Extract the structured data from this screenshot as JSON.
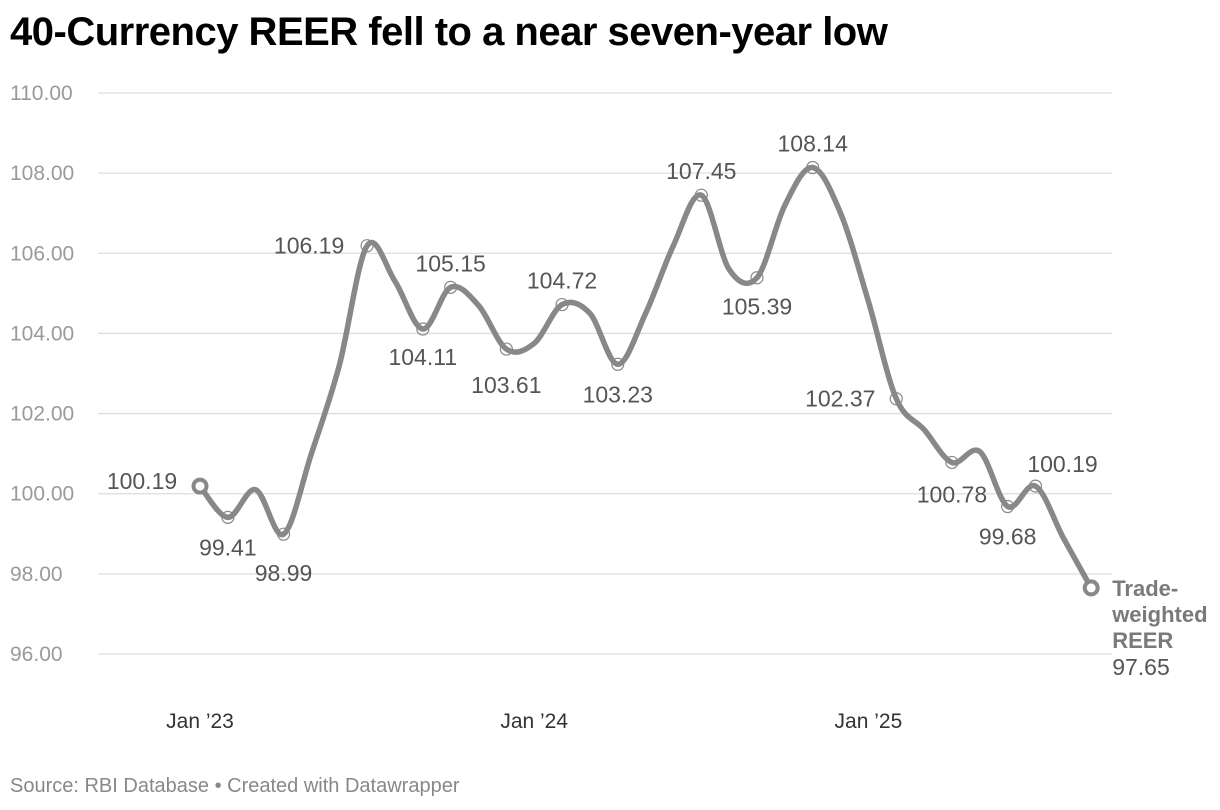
{
  "title": "40-Currency REER fell to a near seven-year low",
  "footer": {
    "source": "Source: RBI Database",
    "separator": "•",
    "credit": "Created with Datawrapper"
  },
  "colors": {
    "line": "#888888",
    "grid": "#dddddd",
    "label": "#555555",
    "axis_text": "#9a9a9a"
  },
  "chart_data": {
    "type": "line",
    "title": "40-Currency REER fell to a near seven-year low",
    "xlabel": "",
    "ylabel": "",
    "ylim": [
      96,
      110
    ],
    "y_ticks": [
      "96.00",
      "98.00",
      "100.00",
      "102.00",
      "104.00",
      "106.00",
      "108.00",
      "110.00"
    ],
    "x_ticks": [
      {
        "label": "Jan ’23",
        "month_index": 0
      },
      {
        "label": "Jan ’24",
        "month_index": 12
      },
      {
        "label": "Jan ’25",
        "month_index": 24
      }
    ],
    "series": [
      {
        "name": "Trade-weighted REER",
        "points": [
          {
            "month_index": 0,
            "value": 100.19,
            "label": "100.19"
          },
          {
            "month_index": 1,
            "value": 99.41,
            "label": "99.41"
          },
          {
            "month_index": 2,
            "value": 100.1
          },
          {
            "month_index": 3,
            "value": 98.99,
            "label": "98.99"
          },
          {
            "month_index": 4,
            "value": 101.0
          },
          {
            "month_index": 5,
            "value": 103.2
          },
          {
            "month_index": 6,
            "value": 106.19,
            "label": "106.19"
          },
          {
            "month_index": 7,
            "value": 105.3
          },
          {
            "month_index": 8,
            "value": 104.11,
            "label": "104.11"
          },
          {
            "month_index": 9,
            "value": 105.15,
            "label": "105.15"
          },
          {
            "month_index": 10,
            "value": 104.7
          },
          {
            "month_index": 11,
            "value": 103.61,
            "label": "103.61"
          },
          {
            "month_index": 12,
            "value": 103.75
          },
          {
            "month_index": 13,
            "value": 104.72,
            "label": "104.72"
          },
          {
            "month_index": 14,
            "value": 104.5
          },
          {
            "month_index": 15,
            "value": 103.23,
            "label": "103.23"
          },
          {
            "month_index": 16,
            "value": 104.5
          },
          {
            "month_index": 17,
            "value": 106.2
          },
          {
            "month_index": 18,
            "value": 107.45,
            "label": "107.45"
          },
          {
            "month_index": 19,
            "value": 105.6
          },
          {
            "month_index": 20,
            "value": 105.39,
            "label": "105.39"
          },
          {
            "month_index": 21,
            "value": 107.2
          },
          {
            "month_index": 22,
            "value": 108.14,
            "label": "108.14"
          },
          {
            "month_index": 23,
            "value": 107.0
          },
          {
            "month_index": 24,
            "value": 104.8
          },
          {
            "month_index": 25,
            "value": 102.37,
            "label": "102.37"
          },
          {
            "month_index": 26,
            "value": 101.6
          },
          {
            "month_index": 27,
            "value": 100.78,
            "label": "100.78"
          },
          {
            "month_index": 28,
            "value": 101.05
          },
          {
            "month_index": 29,
            "value": 99.68,
            "label": "99.68"
          },
          {
            "month_index": 30,
            "value": 100.19,
            "label": "100.19"
          },
          {
            "month_index": 31,
            "value": 98.9
          },
          {
            "month_index": 32,
            "value": 97.65
          }
        ]
      }
    ],
    "end_label": {
      "name_lines": [
        "Trade-",
        "weighted",
        "REER"
      ],
      "value": "97.65"
    }
  }
}
